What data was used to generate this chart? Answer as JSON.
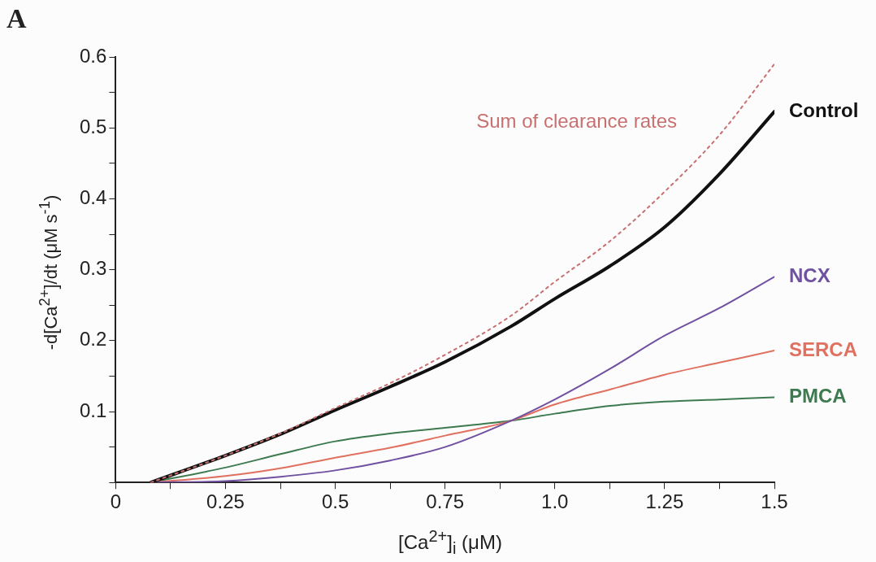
{
  "chart_data": {
    "type": "line",
    "xlabel": "[Ca$^{2+}$]$_{i}$ (μM)",
    "ylabel": "-d[Ca$^{2+}$]/dt (μM s$^{-1}$)",
    "annotations": [
      "A"
    ],
    "x": [
      0.08,
      0.25,
      0.375,
      0.5,
      0.625,
      0.75,
      0.9,
      1.0,
      1.125,
      1.25,
      1.375,
      1.5
    ],
    "series": [
      {
        "name": "Sum of clearance rates",
        "color": "#c87070",
        "line_style": "dotted",
        "values": [
          0,
          0.038,
          0.069,
          0.105,
          0.14,
          0.18,
          0.235,
          0.283,
          0.34,
          0.41,
          0.49,
          0.59
        ]
      },
      {
        "name": "Control",
        "color": "#111111",
        "values": [
          0,
          0.038,
          0.068,
          0.102,
          0.135,
          0.17,
          0.22,
          0.259,
          0.305,
          0.36,
          0.435,
          0.523
        ]
      },
      {
        "name": "NCX",
        "color": "#7050a0",
        "values": [
          0,
          0.002,
          0.008,
          0.017,
          0.031,
          0.05,
          0.087,
          0.117,
          0.16,
          0.207,
          0.246,
          0.29
        ]
      },
      {
        "name": "SERCA",
        "color": "#e07060",
        "values": [
          0,
          0.009,
          0.02,
          0.035,
          0.049,
          0.066,
          0.087,
          0.11,
          0.131,
          0.152,
          0.169,
          0.186
        ]
      },
      {
        "name": "PMCA",
        "color": "#3e7a50",
        "values": [
          0,
          0.021,
          0.04,
          0.058,
          0.069,
          0.077,
          0.087,
          0.097,
          0.108,
          0.114,
          0.117,
          0.12
        ]
      }
    ],
    "xlim": [
      0,
      1.5
    ],
    "xticks": [
      {
        "value": 0,
        "label": "0"
      },
      {
        "value": 0.125,
        "label": null
      },
      0.25,
      {
        "value": 0.375,
        "label": null
      },
      0.5,
      {
        "value": 0.625,
        "label": null
      },
      0.75,
      {
        "value": 0.875,
        "label": null
      },
      {
        "value": 1,
        "label": "1.0"
      },
      {
        "value": 1.125,
        "label": null
      },
      1.25,
      {
        "value": 1.375,
        "label": null
      },
      1.5
    ],
    "ylim": [
      0,
      0.6
    ],
    "yticks": [
      {
        "value": 0,
        "label": null
      },
      {
        "value": 0.05,
        "label": null
      },
      0.1,
      {
        "value": 0.15,
        "label": null
      },
      0.2,
      {
        "value": 0.25,
        "label": null
      },
      0.3,
      {
        "value": 0.35,
        "label": null
      },
      0.4,
      {
        "value": 0.45,
        "label": null
      },
      0.5,
      {
        "value": 0.55,
        "label": null
      },
      0.6
    ],
    "grid": false,
    "legend": false,
    "marker": "none"
  }
}
